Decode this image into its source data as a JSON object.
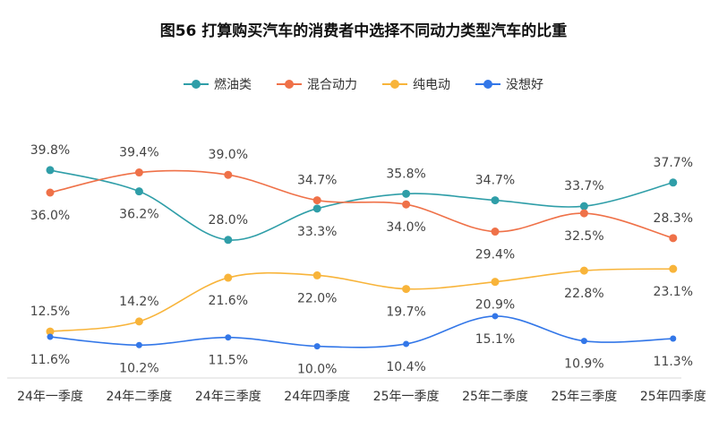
{
  "chart_data": {
    "type": "line",
    "title": "图56 打算购买汽车的消费者中选择不同动力类型汽车的比重",
    "xlabel": "",
    "ylabel": "",
    "ylim": [
      5,
      45
    ],
    "grid": false,
    "legend_position": "top",
    "categories": [
      "24年一季度",
      "24年二季度",
      "24年三季度",
      "24年四季度",
      "25年一季度",
      "25年二季度",
      "25年三季度",
      "25年四季度"
    ],
    "series": [
      {
        "name": "燃油类",
        "color": "#2f9ea8",
        "values": [
          39.8,
          36.2,
          28.0,
          33.3,
          35.8,
          34.7,
          33.7,
          37.7
        ],
        "label_pos": [
          "above",
          "below",
          "above",
          "below",
          "above",
          "above",
          "above",
          "above"
        ]
      },
      {
        "name": "混合动力",
        "color": "#ef7148",
        "values": [
          36.0,
          39.4,
          39.0,
          34.7,
          34.0,
          29.4,
          32.5,
          28.3
        ],
        "label_pos": [
          "below",
          "above",
          "above",
          "above",
          "below",
          "below",
          "below",
          "above"
        ]
      },
      {
        "name": "纯电动",
        "color": "#f8b43a",
        "values": [
          12.5,
          14.2,
          21.6,
          22.0,
          19.7,
          20.9,
          22.8,
          23.1
        ],
        "label_pos": [
          "above",
          "above",
          "below",
          "below",
          "below",
          "below",
          "below",
          "below"
        ]
      },
      {
        "name": "没想好",
        "color": "#3377e8",
        "values": [
          11.6,
          10.2,
          11.5,
          10.0,
          10.4,
          15.1,
          10.9,
          11.3
        ],
        "label_pos": [
          "below",
          "below",
          "below",
          "below",
          "below",
          "below",
          "below",
          "below"
        ]
      }
    ]
  }
}
